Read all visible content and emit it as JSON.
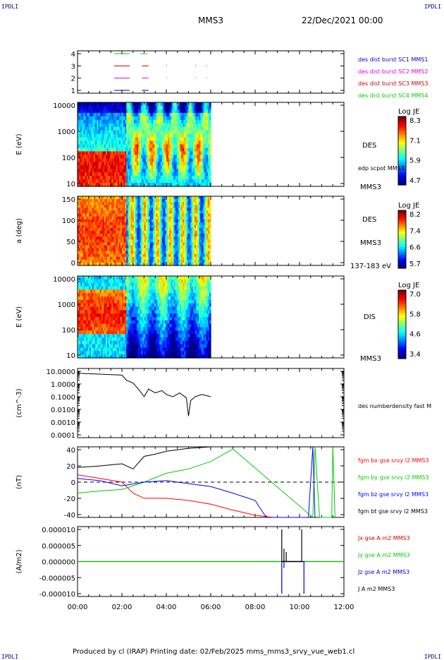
{
  "corner_tl": "IPDLI",
  "corner_tr": "IPDLI",
  "corner_bl": "IPDLI",
  "corner_br": "IPDLI",
  "header": {
    "spacecraft": "MMS3",
    "date": "22/Dec/2021 00:00"
  },
  "footer": "Produced by cl (IRAP)   Printing date: 02/Feb/2025   mms_mms3_srvy_vue_web1.cl",
  "time_axis": {
    "ticks": [
      "00:00",
      "02:00",
      "04:00",
      "06:00",
      "08:00",
      "10:00",
      "12:00"
    ],
    "range_hours": [
      0,
      12
    ]
  },
  "colors": {
    "red": "#ff0000",
    "green": "#00cc00",
    "blue": "#0000ff",
    "magenta": "#dd00dd",
    "black": "#000000",
    "darkred": "#cc0000",
    "navy": "#00008b"
  },
  "chart_data": [
    {
      "type": "timeline",
      "panel": "availability",
      "yticks": [
        "4",
        "3",
        "2",
        "1"
      ],
      "legend": [
        {
          "label": "des dist burst SC1 MMS1",
          "color": "#0000cc"
        },
        {
          "label": "des dist burst SC2 MMS2",
          "color": "#dd00dd"
        },
        {
          "label": "des dist burst SC3 MMS3",
          "color": "#cc0000"
        },
        {
          "label": "des dist burst SC4 MMS4",
          "color": "#00cc00"
        }
      ]
    },
    {
      "type": "heatmap",
      "panel": "des_energy",
      "ylabel": "E (eV)",
      "yticks": [
        "10000",
        "1000",
        "100",
        "10"
      ],
      "side_labels": [
        "DES",
        "edp scpot MMS3",
        "MMS3"
      ],
      "colorbar": {
        "title": "Log JE",
        "ticks": [
          "8.3",
          "7.1",
          "5.9",
          "4.7"
        ]
      },
      "data_end_hours": 6
    },
    {
      "type": "heatmap",
      "panel": "des_pitch",
      "ylabel": "a (deg)",
      "yticks": [
        "150",
        "100",
        "50",
        "0"
      ],
      "side_labels": [
        "DES",
        "MMS3",
        "137-183 eV"
      ],
      "colorbar": {
        "title": "Log JE",
        "ticks": [
          "8.2",
          "7.4",
          "6.6",
          "5.7"
        ]
      },
      "data_end_hours": 6
    },
    {
      "type": "heatmap",
      "panel": "dis_energy",
      "ylabel": "E (eV)",
      "yticks": [
        "10000",
        "1000",
        "100",
        "10"
      ],
      "side_labels": [
        "DIS",
        "MMS3"
      ],
      "colorbar": {
        "title": "Log JE",
        "ticks": [
          "7.0",
          "5.8",
          "4.6",
          "3.4"
        ]
      },
      "data_end_hours": 6
    },
    {
      "type": "line",
      "panel": "density",
      "ylabel": "(cm^-3)",
      "yticks": [
        "10.0000",
        "1.0000",
        "0.1000",
        "0.0100",
        "0.0010",
        "0.0001"
      ],
      "ylim": [
        0.0001,
        10
      ],
      "yscale": "log",
      "series": [
        {
          "name": "des numberdensity fast M",
          "color": "#000000",
          "x": [
            0,
            0.5,
            1,
            1.5,
            2,
            2.2,
            2.5,
            2.8,
            3,
            3.2,
            3.5,
            3.8,
            4,
            4.3,
            4.6,
            4.9,
            5,
            5.1,
            5.3,
            5.6,
            6
          ],
          "y": [
            7,
            6.5,
            6,
            5.5,
            5,
            2,
            1.2,
            0.3,
            0.1,
            0.4,
            0.2,
            0.3,
            0.15,
            0.1,
            0.2,
            0.08,
            0.003,
            0.05,
            0.1,
            0.15,
            0.1
          ]
        }
      ]
    },
    {
      "type": "line",
      "panel": "fgm",
      "ylabel": "(nT)",
      "yticks": [
        "40",
        "20",
        "0",
        "-20",
        "-40"
      ],
      "ylim": [
        -48,
        48
      ],
      "series": [
        {
          "name": "fgm bx gse srvy l2 MMS3",
          "color": "#ff0000",
          "x": [
            0,
            1,
            2,
            2.5,
            3,
            4,
            5,
            6,
            7,
            8,
            8.8
          ],
          "y": [
            10,
            5,
            0,
            -15,
            -22,
            -22,
            -25,
            -30,
            -38,
            -45,
            -50
          ]
        },
        {
          "name": "fgm by gse srvy l2 MMS3",
          "color": "#00cc00",
          "x": [
            0,
            1,
            2,
            3,
            4,
            5,
            6,
            7,
            10.6,
            10.7,
            10.9,
            11.45,
            11.5,
            11.6
          ],
          "y": [
            -15,
            -12,
            -10,
            0,
            12,
            18,
            28,
            45,
            -60,
            50,
            -60,
            -60,
            50,
            -60
          ]
        },
        {
          "name": "fgm bz gse srvy l2 MMS3",
          "color": "#0000ff",
          "x": [
            0,
            1,
            2,
            3,
            4,
            5,
            6,
            7,
            8,
            8.5,
            10.4,
            10.6,
            10.7
          ],
          "y": [
            5,
            2,
            -5,
            0,
            2,
            -2,
            -6,
            -15,
            -25,
            -50,
            -50,
            50,
            -60
          ]
        },
        {
          "name": "fgm bt gse srvy l2 MMS3",
          "color": "#000000",
          "x": [
            0,
            1,
            2,
            2.5,
            3,
            3.5,
            4,
            5,
            6,
            6.3
          ],
          "y": [
            20,
            22,
            25,
            18,
            35,
            38,
            42,
            46,
            50,
            52
          ]
        }
      ]
    },
    {
      "type": "line",
      "panel": "current",
      "ylabel": "(A/m2)",
      "yticks": [
        "0.000010",
        "0.000005",
        "0.000000",
        "-0.000005",
        "-0.000010"
      ],
      "ylim": [
        -1e-05,
        1e-05
      ],
      "series": [
        {
          "name": "Jx gse A m2 MMS3",
          "color": "#cc0000",
          "x": [
            0,
            12
          ],
          "y": [
            0,
            0
          ]
        },
        {
          "name": "Jy gse A m2 MMS3",
          "color": "#00cc00",
          "x": [
            0,
            12
          ],
          "y": [
            0,
            0
          ]
        },
        {
          "name": "Jz gse A m2 MMS3",
          "color": "#0000cc",
          "x": [
            9.2,
            9.3,
            10.2
          ],
          "y": [
            -1e-05,
            -2e-06,
            -1e-05
          ]
        },
        {
          "name": "J A m2 MMS3",
          "color": "#000000",
          "x": [
            9.2,
            9.3,
            9.4,
            10.1
          ],
          "y": [
            1e-05,
            4e-06,
            3e-06,
            1e-05
          ]
        }
      ]
    }
  ]
}
